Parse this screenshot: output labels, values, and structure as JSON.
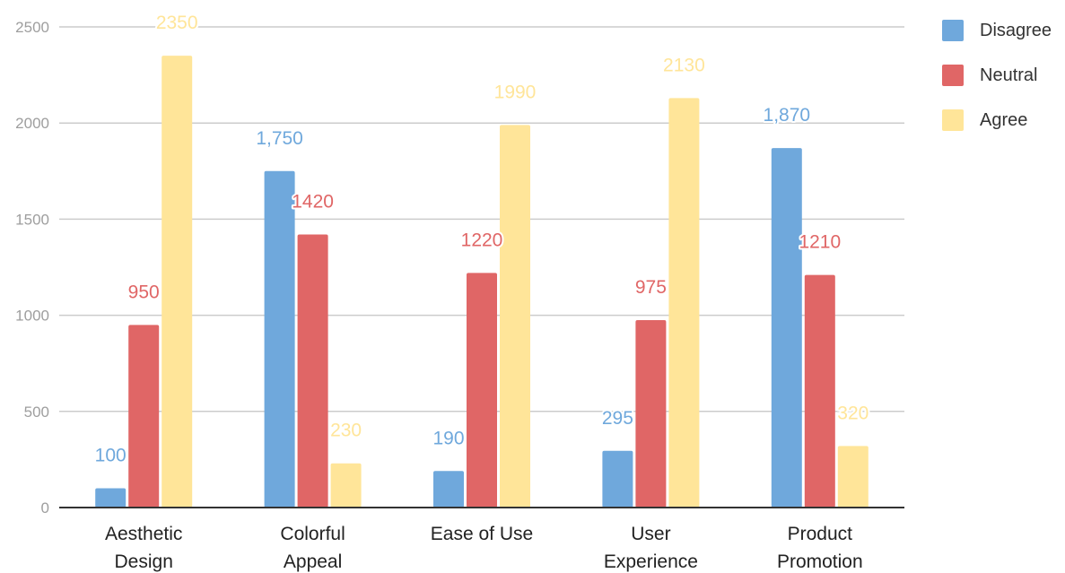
{
  "chart_data": {
    "type": "bar",
    "title": "",
    "xlabel": "",
    "ylabel": "",
    "ylim": [
      0,
      2500
    ],
    "yticks": [
      0,
      500,
      1000,
      1500,
      2000,
      2500
    ],
    "grid": true,
    "legend_position": "right",
    "categories": [
      [
        "Aesthetic",
        "Design"
      ],
      [
        "Colorful",
        "Appeal"
      ],
      [
        "Ease of Use"
      ],
      [
        "User",
        "Experience"
      ],
      [
        "Product",
        "Promotion"
      ]
    ],
    "series": [
      {
        "name": "Disagree",
        "color": "#6fa8dc",
        "values": [
          100,
          1750,
          190,
          295,
          1870
        ],
        "labels": [
          "100",
          "1,750",
          "190",
          "295",
          "1,870"
        ]
      },
      {
        "name": "Neutral",
        "color": "#e06666",
        "values": [
          950,
          1420,
          1220,
          975,
          1210
        ],
        "labels": [
          "950",
          "1420",
          "1220",
          "975",
          "1210"
        ]
      },
      {
        "name": "Agree",
        "color": "#ffe599",
        "values": [
          2350,
          230,
          1990,
          2130,
          320
        ],
        "labels": [
          "2350",
          "230",
          "1990",
          "2130",
          "320"
        ]
      }
    ]
  }
}
